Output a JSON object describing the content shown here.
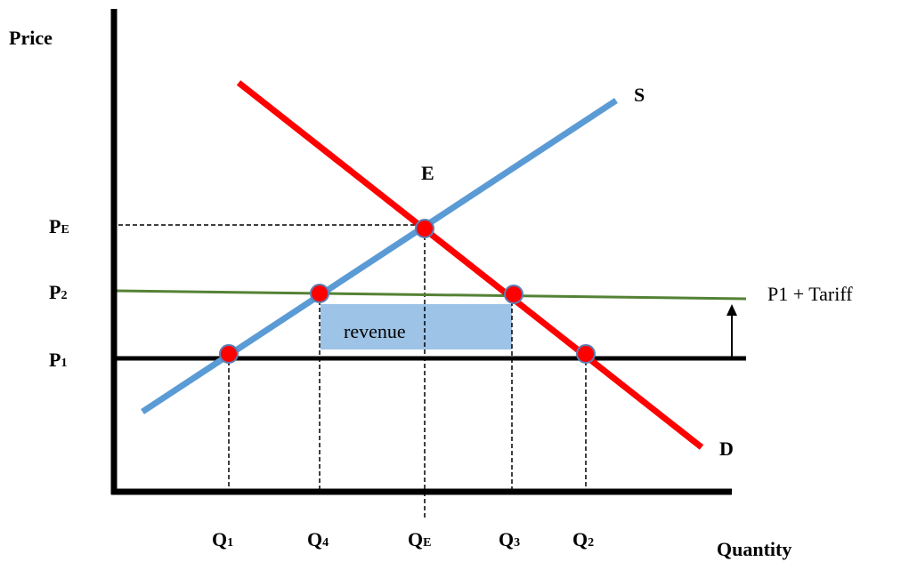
{
  "axis_labels": {
    "y": "Price",
    "x": "Quantity"
  },
  "curves": {
    "supply": "S",
    "demand": "D",
    "equilibrium": "E",
    "tariff_line": "P1 + Tariff",
    "area": "revenue"
  },
  "price_levels": [
    {
      "letter": "P",
      "sub": "E"
    },
    {
      "letter": "P",
      "sub": "2"
    },
    {
      "letter": "P",
      "sub": "1"
    }
  ],
  "quantity_levels": [
    {
      "letter": "Q",
      "sub": "1"
    },
    {
      "letter": "Q",
      "sub": "4"
    },
    {
      "letter": "Q",
      "sub": "E"
    },
    {
      "letter": "Q",
      "sub": "3"
    },
    {
      "letter": "Q",
      "sub": "2"
    }
  ]
}
